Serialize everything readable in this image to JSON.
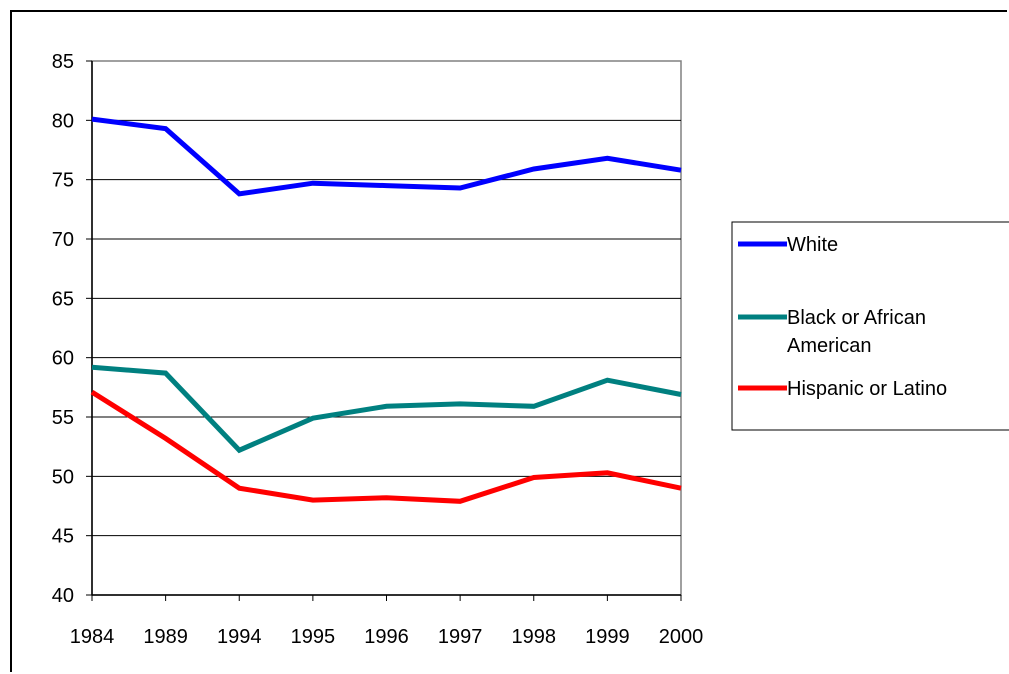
{
  "chart_data": {
    "type": "line",
    "title": "",
    "xlabel": "",
    "ylabel": "",
    "categories": [
      "1984",
      "1989",
      "1994",
      "1995",
      "1996",
      "1997",
      "1998",
      "1999",
      "2000"
    ],
    "ylim": [
      40,
      85
    ],
    "yticks": [
      40,
      45,
      50,
      55,
      60,
      65,
      70,
      75,
      80,
      85
    ],
    "grid": "horizontal",
    "legend_position": "right",
    "series": [
      {
        "name": "White",
        "legend_lines": [
          "White"
        ],
        "color": "#0000ff",
        "values": [
          80.1,
          79.3,
          73.8,
          74.7,
          74.5,
          74.3,
          75.9,
          76.8,
          75.8
        ]
      },
      {
        "name": "Black or African American",
        "legend_lines": [
          "Black or African",
          "American"
        ],
        "color": "#008080",
        "values": [
          59.2,
          58.7,
          52.2,
          54.9,
          55.9,
          56.1,
          55.9,
          58.1,
          56.9
        ]
      },
      {
        "name": "Hispanic or Latino",
        "legend_lines": [
          "Hispanic or Latino"
        ],
        "color": "#ff0000",
        "values": [
          57.1,
          53.2,
          49.0,
          48.0,
          48.2,
          47.9,
          49.9,
          50.3,
          49.0
        ]
      }
    ]
  }
}
